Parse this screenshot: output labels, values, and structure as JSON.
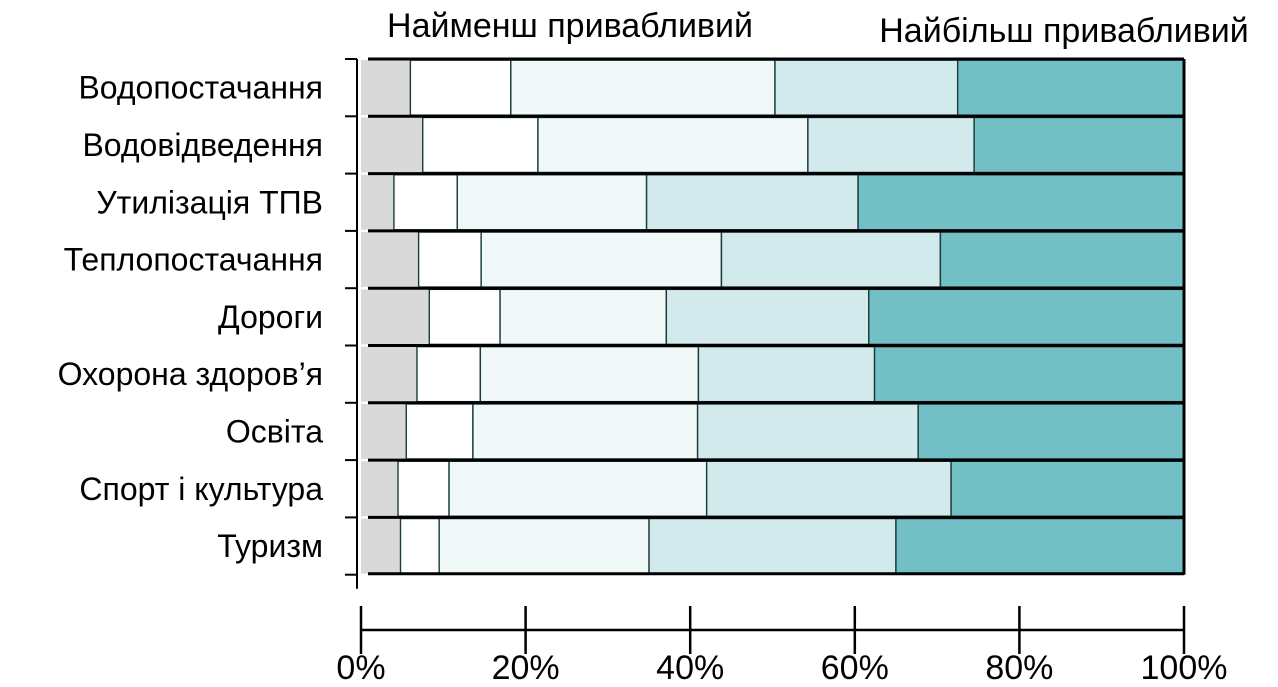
{
  "chart_data": {
    "type": "bar",
    "orientation": "horizontal",
    "stacked": true,
    "normalized": true,
    "title_left": "Найменш привабливий",
    "title_right": "Найбільш привабливий",
    "categories": [
      "Водопостачання",
      "Водовідведення",
      "Утилізація ТПВ",
      "Теплопостачання",
      "Дороги",
      "Охорона здоров’я",
      "Освіта",
      "Спорт і культура",
      "Туризм"
    ],
    "series": [
      {
        "color": "#d9d9d9",
        "values": [
          6,
          7.5,
          4,
          7,
          8.3,
          6.8,
          5.5,
          4.5,
          4.8
        ]
      },
      {
        "color": "#ffffff",
        "values": [
          12.2,
          14,
          7.7,
          7.6,
          8.6,
          7.7,
          8.1,
          6.2,
          4.7
        ]
      },
      {
        "color": "#f0f8f8",
        "values": [
          32.1,
          32.8,
          23,
          29.2,
          20.2,
          26.5,
          27.3,
          31.3,
          25.5
        ]
      },
      {
        "color": "#d3eaec",
        "values": [
          22.2,
          20.2,
          25.7,
          26.6,
          24.6,
          21.4,
          26.8,
          29.7,
          30
        ]
      },
      {
        "color": "#72bfc6",
        "values": [
          27.5,
          25.5,
          39.6,
          29.6,
          38.3,
          37.6,
          32.3,
          28.3,
          35
        ]
      }
    ],
    "xticks": [
      "0%",
      "20%",
      "40%",
      "60%",
      "80%",
      "100%"
    ],
    "xlim": [
      0,
      100
    ],
    "grid": false,
    "legend": "none"
  }
}
